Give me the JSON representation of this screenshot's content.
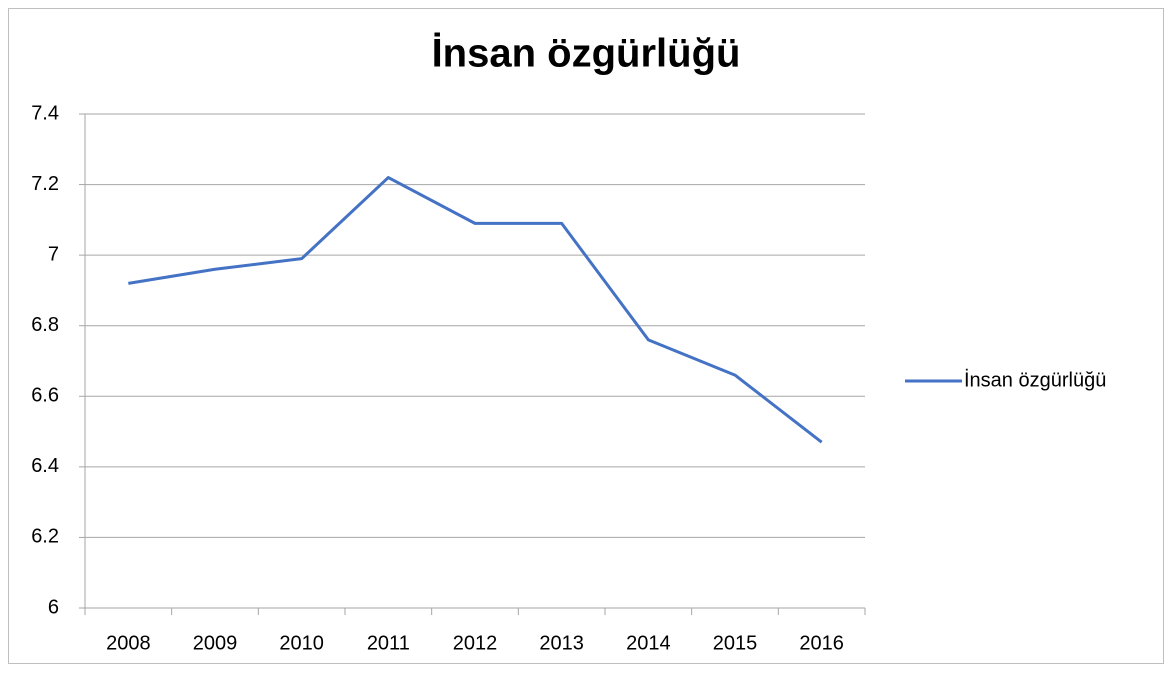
{
  "chart_data": {
    "type": "line",
    "title": "İnsan özgürlüğü",
    "categories": [
      "2008",
      "2009",
      "2010",
      "2011",
      "2012",
      "2013",
      "2014",
      "2015",
      "2016"
    ],
    "series": [
      {
        "name": "İnsan özgürlüğü",
        "color": "#4472c4",
        "values": [
          6.92,
          6.96,
          6.99,
          7.22,
          7.09,
          7.09,
          6.76,
          6.66,
          6.47
        ]
      }
    ],
    "ylim": [
      6,
      7.4
    ],
    "yticks": [
      6,
      6.2,
      6.4,
      6.6,
      6.8,
      7,
      7.2,
      7.4
    ],
    "grid": true,
    "legend": "right"
  }
}
